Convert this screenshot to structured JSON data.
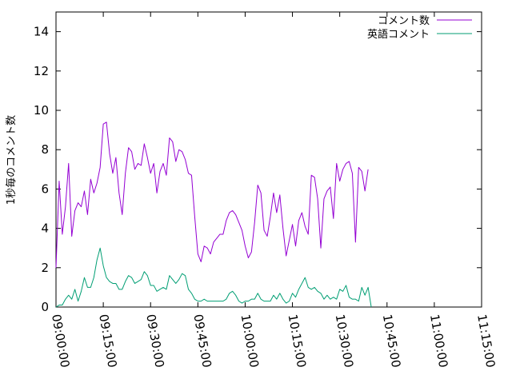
{
  "chart_data": {
    "type": "line",
    "title": "",
    "xlabel": "",
    "ylabel": "1秒毎のコメント数",
    "ylim": [
      0,
      15
    ],
    "yticks": [
      0,
      2,
      4,
      6,
      8,
      10,
      12,
      14
    ],
    "xlim": [
      "09:00:00",
      "11:15:00"
    ],
    "xticks": [
      "09:00:00",
      "09:15:00",
      "09:30:00",
      "09:45:00",
      "10:00:00",
      "10:15:00",
      "10:30:00",
      "10:45:00",
      "11:00:00",
      "11:15:00"
    ],
    "grid": false,
    "legend_position": "top-right",
    "x_start": "09:00:00",
    "x_step_seconds": 60,
    "series": [
      {
        "name": "コメント数",
        "color": "#9400d3",
        "values": [
          2.0,
          6.4,
          3.7,
          5.1,
          7.3,
          3.6,
          4.9,
          5.3,
          5.1,
          5.9,
          4.7,
          6.5,
          5.8,
          6.3,
          7.1,
          9.3,
          9.4,
          7.8,
          6.8,
          7.6,
          5.8,
          4.7,
          6.8,
          8.1,
          7.9,
          7.0,
          7.3,
          7.2,
          8.3,
          7.6,
          6.8,
          7.3,
          5.8,
          6.9,
          7.3,
          6.7,
          8.6,
          8.4,
          7.4,
          8.0,
          7.9,
          7.5,
          6.8,
          6.7,
          4.6,
          2.7,
          2.3,
          3.1,
          3.0,
          2.7,
          3.3,
          3.5,
          3.7,
          3.7,
          4.4,
          4.8,
          4.9,
          4.7,
          4.3,
          3.9,
          3.1,
          2.5,
          2.8,
          4.3,
          6.2,
          5.8,
          3.9,
          3.6,
          4.6,
          5.8,
          4.8,
          5.7,
          4.0,
          2.6,
          3.4,
          4.2,
          3.1,
          4.4,
          4.8,
          4.1,
          3.7,
          6.7,
          6.6,
          5.5,
          3.0,
          5.5,
          5.9,
          6.1,
          4.5,
          7.3,
          6.4,
          7.0,
          7.3,
          7.4,
          6.8,
          3.3,
          7.1,
          6.9,
          5.9,
          7.0
        ]
      },
      {
        "name": "英語コメント",
        "color": "#009e73",
        "values": [
          0.0,
          0.1,
          0.1,
          0.4,
          0.6,
          0.4,
          0.9,
          0.3,
          0.8,
          1.5,
          1.0,
          1.0,
          1.5,
          2.4,
          3.0,
          2.1,
          1.5,
          1.3,
          1.2,
          1.2,
          0.9,
          0.9,
          1.3,
          1.6,
          1.5,
          1.2,
          1.3,
          1.4,
          1.8,
          1.6,
          1.1,
          1.1,
          0.8,
          0.9,
          1.0,
          0.9,
          1.6,
          1.4,
          1.2,
          1.4,
          1.7,
          1.6,
          0.9,
          0.7,
          0.4,
          0.3,
          0.3,
          0.4,
          0.3,
          0.3,
          0.3,
          0.3,
          0.3,
          0.3,
          0.4,
          0.7,
          0.8,
          0.6,
          0.3,
          0.2,
          0.3,
          0.3,
          0.4,
          0.4,
          0.7,
          0.4,
          0.3,
          0.3,
          0.3,
          0.6,
          0.4,
          0.7,
          0.4,
          0.2,
          0.3,
          0.7,
          0.5,
          0.9,
          1.2,
          1.5,
          1.0,
          0.9,
          1.0,
          0.8,
          0.7,
          0.4,
          0.6,
          0.4,
          0.5,
          0.4,
          0.9,
          0.8,
          1.1,
          0.5,
          0.4,
          0.4,
          0.3,
          1.0,
          0.6,
          1.0,
          0.0
        ]
      }
    ]
  }
}
